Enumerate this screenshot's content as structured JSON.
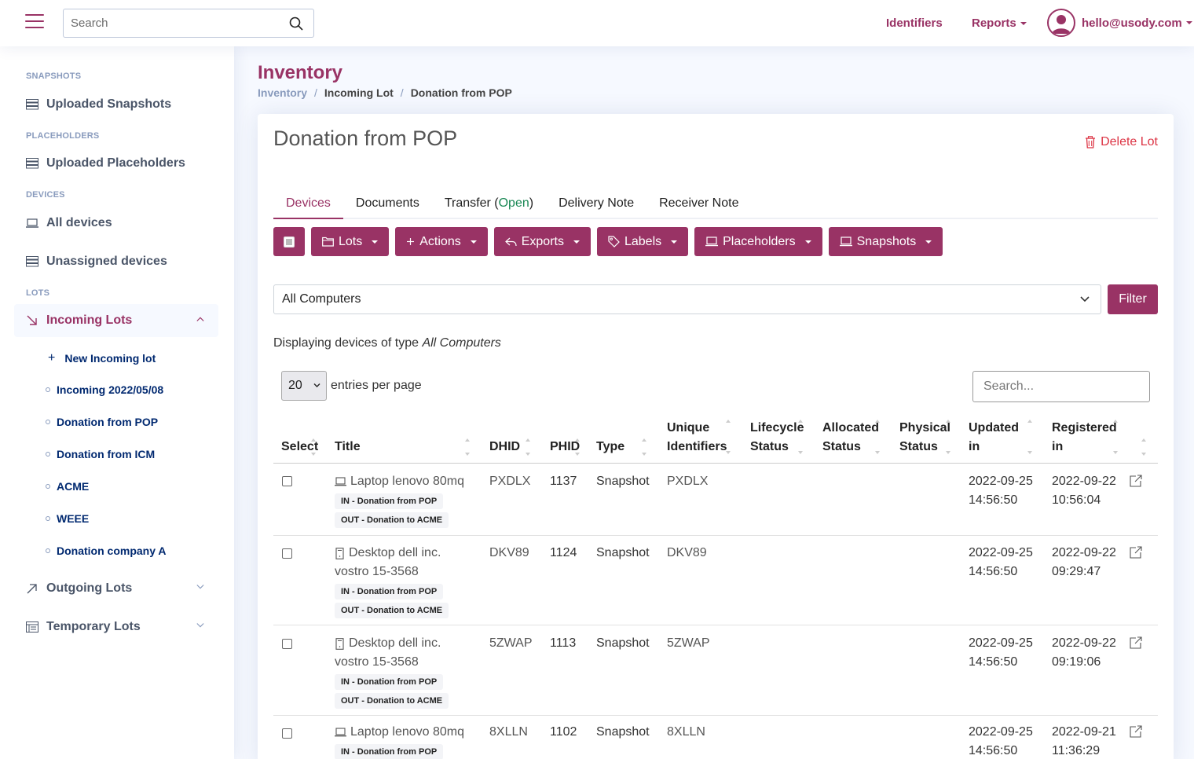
{
  "header": {
    "search_placeholder": "Search",
    "nav_identifiers": "Identifiers",
    "nav_reports": "Reports",
    "user_email": "hello@usody.com"
  },
  "sidebar": {
    "heading_snapshots": "SNAPSHOTS",
    "uploaded_snapshots": "Uploaded Snapshots",
    "heading_placeholders": "PLACEHOLDERS",
    "uploaded_placeholders": "Uploaded Placeholders",
    "heading_devices": "DEVICES",
    "all_devices": "All devices",
    "unassigned_devices": "Unassigned devices",
    "heading_lots": "LOTS",
    "incoming_lots": "Incoming Lots",
    "new_incoming_lot": "New Incoming lot",
    "incoming_items": [
      "Incoming 2022/05/08",
      "Donation from POP",
      "Donation from ICM",
      "ACME",
      "WEEE",
      "Donation company A"
    ],
    "outgoing_lots": "Outgoing Lots",
    "temporary_lots": "Temporary Lots"
  },
  "page": {
    "title": "Inventory",
    "breadcrumb": [
      "Inventory",
      "Incoming Lot",
      "Donation from POP"
    ]
  },
  "card": {
    "title": "Donation from POP",
    "delete_lot": "Delete Lot",
    "tabs": {
      "devices": "Devices",
      "documents": "Documents",
      "transfer": "Transfer",
      "transfer_status": "Open",
      "delivery_note": "Delivery Note",
      "receiver_note": "Receiver Note"
    },
    "toolbar": {
      "lots": "Lots",
      "actions": "Actions",
      "exports": "Exports",
      "labels": "Labels",
      "placeholders": "Placeholders",
      "snapshots": "Snapshots"
    },
    "type_select": "All Computers",
    "filter": "Filter",
    "displaying_prefix": "Displaying devices of type",
    "displaying_type": "All Computers",
    "entries_value": "20",
    "entries_label": "entries per page",
    "table_search_placeholder": "Search..."
  },
  "table": {
    "columns": {
      "select": "Select",
      "title": "Title",
      "dhid": "DHID",
      "phid": "PHID",
      "type": "Type",
      "unique_1": "Unique",
      "unique_2": "Identifiers",
      "lifecycle_1": "Lifecycle",
      "lifecycle_2": "Status",
      "allocated_1": "Allocated",
      "allocated_2": "Status",
      "physical_1": "Physical",
      "physical_2": "Status",
      "updated_1": "Updated",
      "updated_2": "in",
      "registered_1": "Registered",
      "registered_2": "in"
    },
    "rows": [
      {
        "icon": "laptop-icon",
        "title_1": "Laptop lenovo 80mq",
        "title_2": "",
        "tag_in": "IN - Donation from POP",
        "tag_out": "OUT - Donation to ACME",
        "dhid": "PXDLX",
        "phid": "1137",
        "type": "Snapshot",
        "unique": "PXDLX",
        "updated_date": "2022-09-25",
        "updated_time": "14:56:50",
        "registered_date": "2022-09-22",
        "registered_time": "10:56:04"
      },
      {
        "icon": "desktop-icon",
        "title_1": "Desktop dell inc.",
        "title_2": "vostro 15-3568",
        "tag_in": "IN - Donation from POP",
        "tag_out": "OUT - Donation to ACME",
        "dhid": "DKV89",
        "phid": "1124",
        "type": "Snapshot",
        "unique": "DKV89",
        "updated_date": "2022-09-25",
        "updated_time": "14:56:50",
        "registered_date": "2022-09-22",
        "registered_time": "09:29:47"
      },
      {
        "icon": "desktop-icon",
        "title_1": "Desktop dell inc.",
        "title_2": "vostro 15-3568",
        "tag_in": "IN - Donation from POP",
        "tag_out": "OUT - Donation to ACME",
        "dhid": "5ZWAP",
        "phid": "1113",
        "type": "Snapshot",
        "unique": "5ZWAP",
        "updated_date": "2022-09-25",
        "updated_time": "14:56:50",
        "registered_date": "2022-09-22",
        "registered_time": "09:19:06"
      },
      {
        "icon": "laptop-icon",
        "title_1": "Laptop lenovo 80mq",
        "title_2": "",
        "tag_in": "IN - Donation from POP",
        "tag_out": "",
        "dhid": "8XLLN",
        "phid": "1102",
        "type": "Snapshot",
        "unique": "8XLLN",
        "updated_date": "2022-09-25",
        "updated_time": "14:56:50",
        "registered_date": "2022-09-21",
        "registered_time": "11:36:29"
      }
    ]
  },
  "colors": {
    "accent": "#993365",
    "nav_dark": "#012970",
    "muted": "#899bbd",
    "danger": "#dc3545",
    "success": "#198754"
  }
}
